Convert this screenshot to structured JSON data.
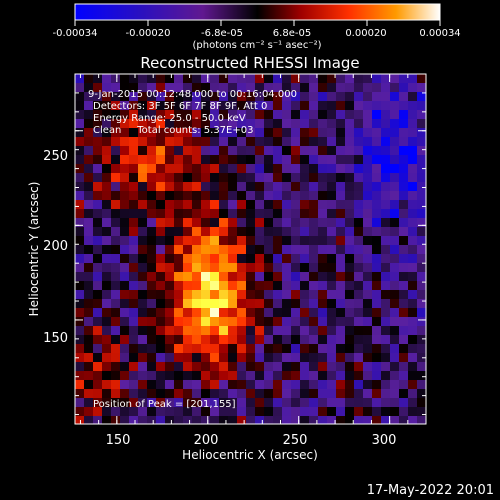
{
  "colorbar": {
    "ticks": [
      "-0.00034",
      "-0.00020",
      "-6.8e-05",
      "6.8e-05",
      "0.00020",
      "0.00034"
    ],
    "unit_label": "(photons cm⁻² s⁻¹ asec⁻²)"
  },
  "plot": {
    "title": "Reconstructed RHESSI Image",
    "info_lines": [
      "9-Jan-2015 00:12:48.000 to 00:16:04.000",
      "Detectors: 3F 5F 6F 7F 8F 9F, Att 0",
      "Energy Range: 25.0 - 50.0 keV",
      "Clean     Total counts: 5.37E+03"
    ],
    "peak_label": "Position of Peak = [201,155]"
  },
  "footer": {
    "timestamp": "17-May-2022 20:01"
  },
  "colors": {
    "axis": "#ffffff",
    "background": "#000000"
  },
  "chart_data": {
    "type": "heatmap",
    "title": "Reconstructed RHESSI Image",
    "xlabel": "Heliocentric X (arcsec)",
    "ylabel": "Heliocentric Y (arcsec)",
    "xlim": [
      127,
      320
    ],
    "ylim": [
      95,
      280
    ],
    "xticks": [
      150,
      200,
      250,
      300
    ],
    "yticks": [
      150,
      200,
      250
    ],
    "value_range": [
      -0.00034,
      0.00034
    ],
    "peak": [
      201,
      155
    ],
    "colormap": [
      "#0000ff",
      "#3010b0",
      "#5a20a0",
      "#000000",
      "#a00000",
      "#ff3000",
      "#ff9000",
      "#ffff40",
      "#ffffff"
    ]
  }
}
